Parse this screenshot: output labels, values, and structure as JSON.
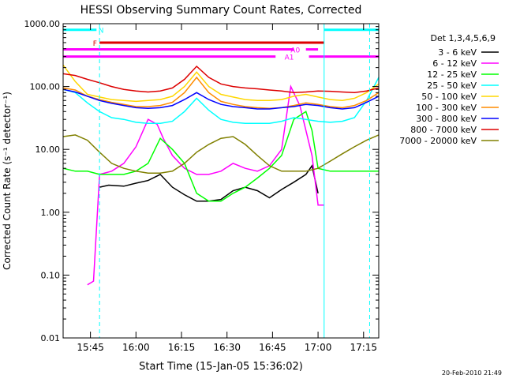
{
  "chart_data": {
    "type": "line",
    "title": "HESSI Observing Summary Count Rates, Corrected",
    "xlabel": "Start Time (15-Jan-05 15:36:02)",
    "ylabel": "Corrected Count Rate (s⁻¹ detector⁻¹)",
    "yscale": "log",
    "ylim": [
      0.01,
      1000
    ],
    "xlim_minutes": [
      0,
      104
    ],
    "x_ticks": [
      {
        "label": "15:45",
        "minute": 9.0
      },
      {
        "label": "16:00",
        "minute": 24.0
      },
      {
        "label": "16:15",
        "minute": 39.0
      },
      {
        "label": "16:30",
        "minute": 54.0
      },
      {
        "label": "16:45",
        "minute": 69.0
      },
      {
        "label": "17:00",
        "minute": 84.0
      },
      {
        "label": "17:15",
        "minute": 99.0
      }
    ],
    "y_ticks": [
      {
        "label": "1000.00",
        "value": 1000
      },
      {
        "label": "100.00",
        "value": 100
      },
      {
        "label": "10.00",
        "value": 10
      },
      {
        "label": "1.00",
        "value": 1
      },
      {
        "label": "0.10",
        "value": 0.1
      },
      {
        "label": "0.01",
        "value": 0.01
      }
    ],
    "legend_title": "Det 1,3,4,5,6,9",
    "legend_position": "right",
    "series": [
      {
        "name": "3 - 6 keV",
        "color": "#000000",
        "x": [
          12,
          15,
          20,
          24,
          28,
          32,
          36,
          40,
          44,
          48,
          52,
          56,
          60,
          64,
          68,
          72,
          76,
          80,
          82,
          84
        ],
        "y": [
          2.5,
          2.7,
          2.6,
          2.9,
          3.2,
          4.0,
          2.5,
          1.9,
          1.5,
          1.5,
          1.6,
          2.2,
          2.5,
          2.2,
          1.7,
          2.3,
          3.0,
          4.0,
          5.5,
          2.0
        ]
      },
      {
        "name": "6 - 12 keV",
        "color": "#ff00ff",
        "x": [
          8,
          10,
          12,
          16,
          20,
          24,
          28,
          31,
          33,
          36,
          40,
          44,
          48,
          52,
          56,
          60,
          64,
          68,
          72,
          75,
          78,
          80,
          82,
          84,
          86
        ],
        "y": [
          0.07,
          0.08,
          4.0,
          4.5,
          6.0,
          11,
          30,
          25,
          15,
          8,
          5,
          4,
          4,
          4.5,
          6,
          5,
          4.5,
          5.5,
          10,
          100,
          50,
          20,
          8,
          1.3,
          1.3
        ]
      },
      {
        "name": "12 - 25 keV",
        "color": "#00ff00",
        "x": [
          0,
          4,
          8,
          12,
          16,
          20,
          24,
          28,
          32,
          36,
          40,
          44,
          48,
          52,
          56,
          60,
          64,
          68,
          72,
          76,
          80,
          82,
          84,
          88,
          92,
          96,
          100,
          104
        ],
        "y": [
          5.0,
          4.5,
          4.5,
          4.0,
          4.0,
          4.0,
          4.5,
          6.0,
          15,
          10,
          6.0,
          2.0,
          1.5,
          1.5,
          2.0,
          2.5,
          3.5,
          5.0,
          8.0,
          30,
          40,
          20,
          5.0,
          4.5,
          4.5,
          4.5,
          4.5,
          4.5
        ]
      },
      {
        "name": "25 - 50 keV",
        "color": "#00ffff",
        "x": [
          0,
          4,
          8,
          12,
          16,
          20,
          24,
          28,
          32,
          36,
          40,
          44,
          48,
          52,
          56,
          60,
          64,
          68,
          72,
          76,
          80,
          84,
          88,
          92,
          96,
          100,
          104
        ],
        "y": [
          90,
          80,
          55,
          40,
          32,
          30,
          27,
          26,
          26,
          28,
          40,
          65,
          42,
          30,
          27,
          26,
          26,
          26,
          28,
          32,
          30,
          28,
          27,
          28,
          32,
          60,
          140
        ]
      },
      {
        "name": "50 - 100 keV",
        "color": "#ffd700",
        "x": [
          0,
          4,
          8,
          12,
          16,
          20,
          24,
          28,
          32,
          36,
          40,
          44,
          48,
          52,
          56,
          60,
          64,
          68,
          72,
          76,
          80,
          84,
          88,
          92,
          96,
          100,
          104
        ],
        "y": [
          220,
          120,
          75,
          68,
          62,
          60,
          58,
          60,
          62,
          70,
          100,
          170,
          100,
          75,
          68,
          62,
          60,
          60,
          62,
          70,
          75,
          68,
          62,
          60,
          65,
          80,
          110
        ]
      },
      {
        "name": "100 - 300 keV",
        "color": "#ff8c00",
        "x": [
          0,
          4,
          8,
          12,
          16,
          20,
          24,
          28,
          32,
          36,
          40,
          44,
          48,
          52,
          56,
          60,
          64,
          68,
          72,
          76,
          80,
          84,
          88,
          92,
          96,
          100,
          104
        ],
        "y": [
          95,
          88,
          70,
          62,
          56,
          52,
          48,
          48,
          50,
          56,
          80,
          140,
          80,
          58,
          52,
          48,
          46,
          45,
          46,
          50,
          55,
          52,
          48,
          46,
          50,
          60,
          80
        ]
      },
      {
        "name": "300 - 800 keV",
        "color": "#0000ff",
        "x": [
          0,
          4,
          8,
          12,
          16,
          20,
          24,
          28,
          32,
          36,
          40,
          44,
          48,
          52,
          56,
          60,
          64,
          68,
          72,
          76,
          80,
          84,
          88,
          92,
          96,
          100,
          104
        ],
        "y": [
          90,
          82,
          70,
          60,
          54,
          50,
          46,
          45,
          46,
          50,
          62,
          80,
          62,
          52,
          48,
          46,
          44,
          44,
          46,
          48,
          52,
          50,
          46,
          44,
          46,
          56,
          70
        ]
      },
      {
        "name": "800 - 7000 keV",
        "color": "#dd0000",
        "x": [
          0,
          4,
          8,
          12,
          16,
          20,
          24,
          28,
          32,
          36,
          40,
          44,
          48,
          52,
          56,
          60,
          64,
          68,
          72,
          76,
          80,
          84,
          88,
          92,
          96,
          100,
          104
        ],
        "y": [
          160,
          150,
          130,
          115,
          100,
          90,
          85,
          82,
          85,
          95,
          130,
          210,
          140,
          110,
          100,
          95,
          92,
          88,
          85,
          80,
          82,
          85,
          84,
          82,
          80,
          85,
          95
        ]
      },
      {
        "name": "7000 - 20000 keV",
        "color": "#808000",
        "x": [
          0,
          4,
          8,
          12,
          16,
          20,
          24,
          28,
          32,
          36,
          40,
          44,
          48,
          52,
          56,
          60,
          64,
          68,
          72,
          76,
          80,
          84,
          88,
          92,
          96,
          100,
          104
        ],
        "y": [
          16,
          17,
          14,
          9,
          6.0,
          5.0,
          4.5,
          4.2,
          4.2,
          4.5,
          6.0,
          9.0,
          12,
          15,
          16,
          12,
          8.0,
          5.5,
          4.5,
          4.5,
          4.5,
          5.0,
          6.5,
          8.5,
          11,
          14,
          17
        ]
      }
    ],
    "flags": [
      {
        "label": "N",
        "color": "#00ffff",
        "value": 800
      },
      {
        "label": "F",
        "color": "#dd0000",
        "value": 500
      },
      {
        "label": "A0",
        "color": "#ff00ff",
        "value": 390
      },
      {
        "label": "A1",
        "color": "#ff00ff",
        "value": 300
      }
    ],
    "vertical_markers_minutes": [
      0,
      12,
      86,
      101
    ]
  },
  "timestamp": "20-Feb-2010 21:49"
}
